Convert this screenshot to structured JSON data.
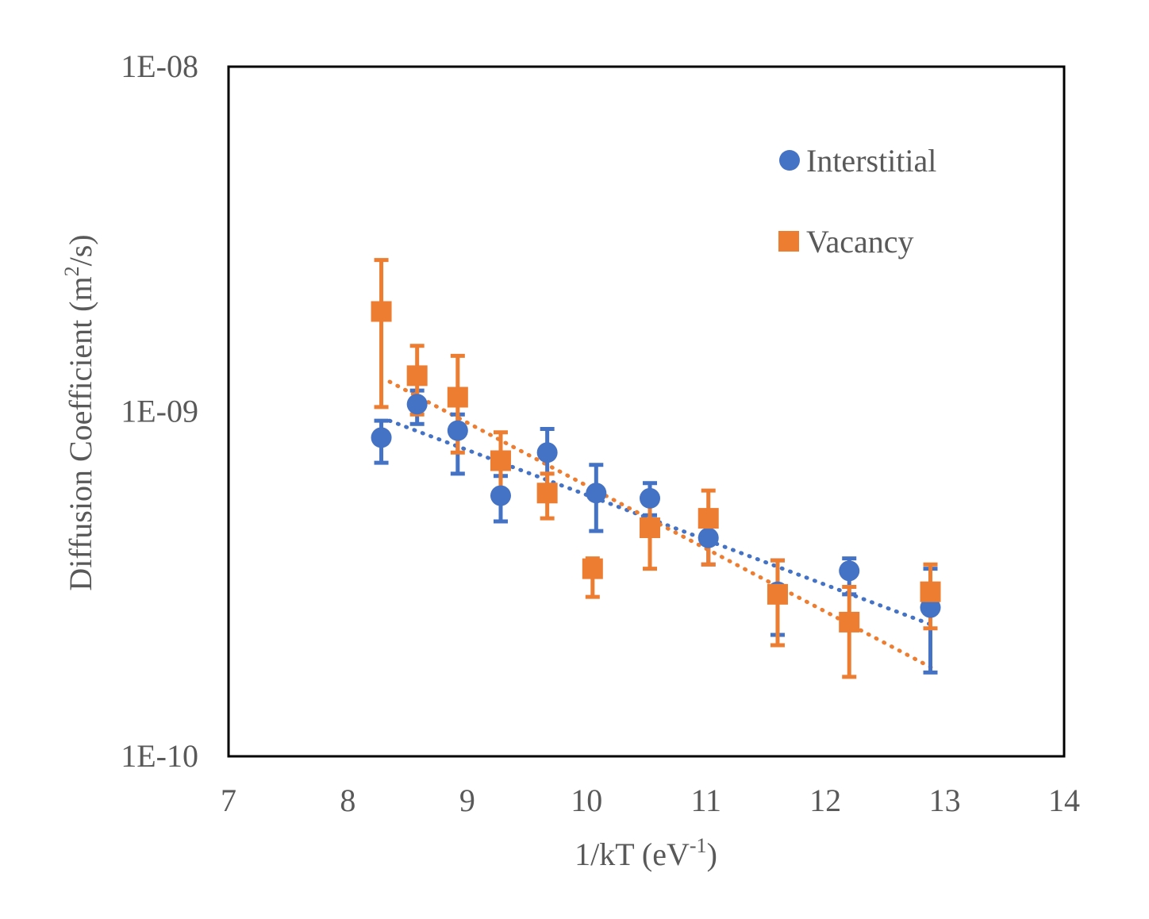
{
  "chart_data": {
    "type": "scatter",
    "xlabel_main": "1/kT (eV",
    "xlabel_sup": "-1",
    "xlabel_end": ")",
    "ylabel_main": "Diffusion Coefficient (m",
    "ylabel_sup": "2",
    "ylabel_end": "/s)",
    "xlim": [
      7,
      14
    ],
    "ylim": [
      1e-10,
      1e-08
    ],
    "y_scale": "log",
    "x_ticks": [
      "7",
      "8",
      "9",
      "10",
      "11",
      "12",
      "13",
      "14"
    ],
    "y_ticks": [
      {
        "value": 1e-08,
        "label": "1E-08"
      },
      {
        "value": 1e-09,
        "label": "1E-09"
      },
      {
        "value": 1e-10,
        "label": "1E-10"
      }
    ],
    "grid": false,
    "legend_position": "top-right",
    "series": [
      {
        "name": "Interstitial",
        "color": "#4472C4",
        "marker": "circle",
        "trendline": "exponential",
        "trend_x": [
          8.35,
          12.9
        ],
        "trend_y": [
          9.4e-10,
          2.4e-10
        ],
        "points": [
          {
            "x": 8.28,
            "y": 8.4e-10,
            "lo": 7.1e-10,
            "hi": 9.4e-10
          },
          {
            "x": 8.58,
            "y": 1.05e-09,
            "lo": 9.2e-10,
            "hi": 1.15e-09
          },
          {
            "x": 8.92,
            "y": 8.8e-10,
            "lo": 6.6e-10,
            "hi": 9.8e-10
          },
          {
            "x": 9.28,
            "y": 5.7e-10,
            "lo": 4.8e-10,
            "hi": 6.5e-10
          },
          {
            "x": 9.67,
            "y": 7.6e-10,
            "lo": 6.1e-10,
            "hi": 8.9e-10
          },
          {
            "x": 10.08,
            "y": 5.8e-10,
            "lo": 4.5e-10,
            "hi": 7e-10
          },
          {
            "x": 10.53,
            "y": 5.6e-10,
            "lo": 5e-10,
            "hi": 6.2e-10
          },
          {
            "x": 11.02,
            "y": 4.3e-10,
            "lo": 3.6e-10,
            "hi": 4.8e-10
          },
          {
            "x": 11.6,
            "y": 3e-10,
            "lo": 2.25e-10,
            "hi": 3.7e-10
          },
          {
            "x": 12.2,
            "y": 3.45e-10,
            "lo": 2.95e-10,
            "hi": 3.75e-10
          },
          {
            "x": 12.88,
            "y": 2.7e-10,
            "lo": 1.75e-10,
            "hi": 3.5e-10
          }
        ]
      },
      {
        "name": "Vacancy",
        "color": "#ED7D31",
        "marker": "square",
        "trendline": "exponential",
        "trend_x": [
          8.35,
          12.9
        ],
        "trend_y": [
          1.22e-09,
          1.8e-10
        ],
        "points": [
          {
            "x": 8.28,
            "y": 1.95e-09,
            "lo": 1.03e-09,
            "hi": 2.75e-09
          },
          {
            "x": 8.58,
            "y": 1.27e-09,
            "lo": 9.8e-10,
            "hi": 1.55e-09
          },
          {
            "x": 8.92,
            "y": 1.1e-09,
            "lo": 7.6e-10,
            "hi": 1.45e-09
          },
          {
            "x": 9.28,
            "y": 7.2e-10,
            "lo": 5.6e-10,
            "hi": 8.7e-10
          },
          {
            "x": 9.67,
            "y": 5.8e-10,
            "lo": 4.9e-10,
            "hi": 6.6e-10
          },
          {
            "x": 10.05,
            "y": 3.5e-10,
            "lo": 2.9e-10,
            "hi": 3.75e-10
          },
          {
            "x": 10.53,
            "y": 4.6e-10,
            "lo": 3.5e-10,
            "hi": 5.4e-10
          },
          {
            "x": 11.02,
            "y": 4.9e-10,
            "lo": 3.6e-10,
            "hi": 5.9e-10
          },
          {
            "x": 11.6,
            "y": 2.95e-10,
            "lo": 2.1e-10,
            "hi": 3.7e-10
          },
          {
            "x": 12.2,
            "y": 2.45e-10,
            "lo": 1.7e-10,
            "hi": 3.1e-10
          },
          {
            "x": 12.88,
            "y": 3e-10,
            "lo": 2.35e-10,
            "hi": 3.6e-10
          }
        ]
      }
    ]
  }
}
